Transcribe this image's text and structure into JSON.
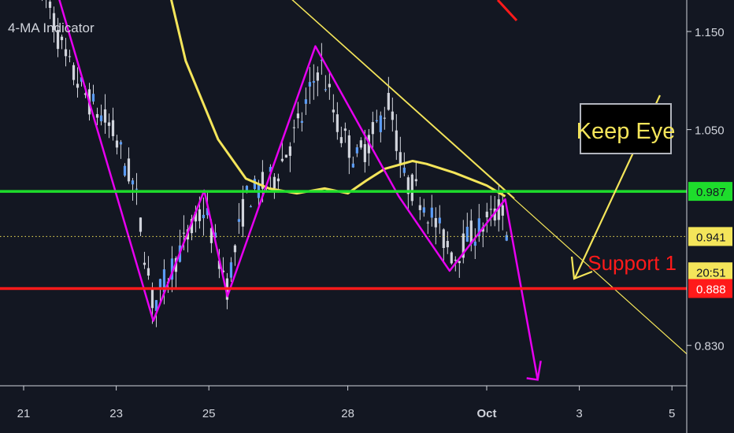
{
  "indicator_label": "4-MA Indicator",
  "chart_data": {
    "type": "candlestick",
    "y_ticks": [
      "1.150",
      "1.050",
      "0.830"
    ],
    "y_tick_values": [
      1.15,
      1.05,
      0.83
    ],
    "x_ticks": [
      {
        "label": "21",
        "day": 21
      },
      {
        "label": "23",
        "day": 23
      },
      {
        "label": "25",
        "day": 25
      },
      {
        "label": "28",
        "day": 28
      },
      {
        "label": "Oct",
        "day": 31
      },
      {
        "label": "3",
        "day": 33
      },
      {
        "label": "5",
        "day": 35
      }
    ],
    "price_labels": [
      {
        "text": "0.987",
        "value": 0.987,
        "bg": "#1edc2c",
        "fg": "#131722"
      },
      {
        "text": "0.941",
        "value": 0.941,
        "bg": "#f4e55a",
        "fg": "#131722"
      },
      {
        "text": "20:51",
        "value": 0.905,
        "bg": "#f4e55a",
        "fg": "#131722"
      },
      {
        "text": "0.888",
        "value": 0.888,
        "bg": "#ff1a1a",
        "fg": "#ffffff"
      }
    ],
    "horizontal_lines": [
      {
        "name": "resistance",
        "value": 0.987,
        "color": "#1edc2c"
      },
      {
        "name": "support",
        "value": 0.888,
        "color": "#ff1a1a"
      },
      {
        "name": "last-price",
        "value": 0.941,
        "color": "#f4e55a",
        "dotted": true
      }
    ],
    "annotations": {
      "keep_eye": "Keep Eye",
      "support": "Support 1"
    },
    "zigzag": [
      [
        21.6,
        1.21
      ],
      [
        23.8,
        0.855
      ],
      [
        24.9,
        0.988
      ],
      [
        25.4,
        0.88
      ],
      [
        27.3,
        1.135
      ],
      [
        29.1,
        0.982
      ],
      [
        30.2,
        0.906
      ],
      [
        31.4,
        0.979
      ],
      [
        32.1,
        0.795
      ]
    ],
    "moving_average": [
      [
        24.1,
        1.2
      ],
      [
        24.5,
        1.12
      ],
      [
        25.2,
        1.04
      ],
      [
        25.8,
        1.0
      ],
      [
        26.3,
        0.99
      ],
      [
        26.9,
        0.985
      ],
      [
        27.5,
        0.99
      ],
      [
        28.0,
        0.985
      ],
      [
        28.4,
        0.998
      ],
      [
        28.8,
        1.01
      ],
      [
        29.4,
        1.018
      ],
      [
        29.7,
        1.015
      ],
      [
        30.3,
        1.006
      ],
      [
        31.0,
        0.993
      ],
      [
        31.4,
        0.982
      ]
    ],
    "colors": {
      "background": "#131722",
      "candle": "#5b9cf6",
      "wick": "#d1d4dc",
      "zigzag": "#e600ef",
      "moving_average": "#f4e55a",
      "trendline": "#f4e55a",
      "keep_eye_arrow": "#f4e55a",
      "support_text": "#ff1a1a",
      "axis_text": "#d1d4dc",
      "red_mark": "#ff1a1a"
    }
  }
}
